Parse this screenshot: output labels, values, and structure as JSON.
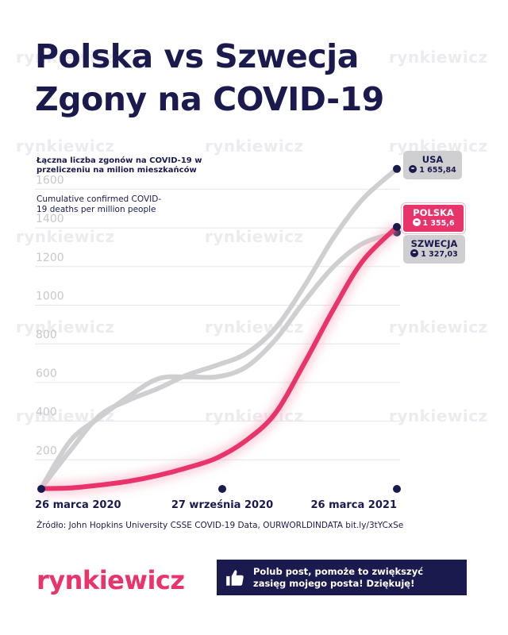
{
  "title": {
    "line1": "Polska vs Szwecja",
    "line2": "Zgony na COVID-19"
  },
  "subtitle_pl": "Łączna liczba zgonów na COVID-19 w przeliczeniu na milion mieszkańców",
  "subtitle_en": "Cumulative confirmed COVID-19 deaths per million people",
  "watermark": "rynkiewicz",
  "source": "Źródło: John Hopkins University CSSE COVID-19 Data, OURWORLDINDATA  bit.ly/3tYCxSe",
  "brand": "rynkiewicz",
  "cta": {
    "line1": "Polub post, pomoże to zwiększyć",
    "line2": "zasięg mojego posta! Dziękuję!",
    "icon": "thumbs-up-icon"
  },
  "labels": {
    "usa": {
      "name": "USA",
      "value": "1 655,84",
      "icon": "skull-icon"
    },
    "polska": {
      "name": "POLSKA",
      "value": "1 355,6",
      "icon": "skull-icon"
    },
    "szwecja": {
      "name": "SZWECJA",
      "value": "1 327,03",
      "icon": "skull-icon"
    }
  },
  "colors": {
    "navy": "#1a1a4e",
    "pink": "#e8336b",
    "gray_line": "#cfcfd2",
    "gray_text": "#c7c7cc"
  },
  "chart_data": {
    "type": "line",
    "title": "Polska vs Szwecja Zgony na COVID-19",
    "xlabel": "",
    "ylabel": "",
    "ylim": [
      0,
      1700
    ],
    "yticks": [
      200,
      400,
      600,
      800,
      1000,
      1200,
      1400,
      1600
    ],
    "grid": true,
    "x_ticks": [
      "26 marca 2020",
      "27 września 2020",
      "26 marca 2021"
    ],
    "x": [
      0,
      30,
      60,
      90,
      120,
      150,
      180,
      210,
      240,
      270,
      300,
      330,
      365
    ],
    "series": [
      {
        "name": "USA",
        "color": "#cfcfd2",
        "width": 6,
        "values": [
          5,
          200,
          380,
          460,
          520,
          590,
          640,
          700,
          830,
          1050,
          1300,
          1500,
          1655.84
        ]
      },
      {
        "name": "SZWECJA",
        "color": "#cfcfd2",
        "width": 6,
        "values": [
          5,
          250,
          370,
          480,
          570,
          580,
          580,
          630,
          770,
          970,
          1150,
          1270,
          1327.03
        ]
      },
      {
        "name": "POLSKA",
        "color": "#e8336b",
        "width": 6,
        "values": [
          2,
          5,
          20,
          40,
          70,
          110,
          160,
          250,
          390,
          650,
          930,
          1180,
          1355.6
        ]
      }
    ]
  }
}
